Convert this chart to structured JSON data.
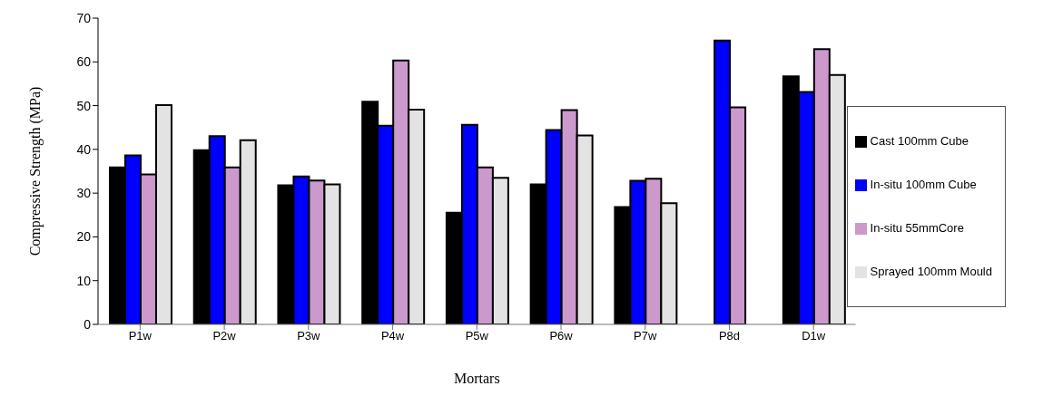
{
  "chart_data": {
    "type": "bar",
    "xlabel": "Mortars",
    "ylabel": "Compressive Strength (MPa)",
    "categories": [
      "P1w",
      "P2w",
      "P3w",
      "P4w",
      "P5w",
      "P6w",
      "P7w",
      "P8d",
      "D1w"
    ],
    "series": [
      {
        "name": "Cast 100mm Cube",
        "color": "#000000",
        "values": [
          35.9,
          39.8,
          31.8,
          50.9,
          25.5,
          32.0,
          26.8,
          null,
          56.7
        ]
      },
      {
        "name": "In-situ 100mm Cube",
        "color": "#0000ff",
        "values": [
          38.6,
          43.0,
          33.8,
          45.4,
          45.6,
          44.4,
          32.8,
          64.9,
          53.1
        ]
      },
      {
        "name": "In-situ 55mmCore",
        "color": "#cc99cc",
        "values": [
          34.3,
          35.9,
          32.9,
          60.3,
          35.9,
          49.0,
          33.3,
          49.6,
          62.9
        ]
      },
      {
        "name": "Sprayed 100mm Mould",
        "color": "#e3e3e3",
        "values": [
          50.1,
          42.1,
          32.0,
          49.1,
          33.5,
          43.2,
          27.7,
          null,
          57.0
        ]
      }
    ],
    "ylim": [
      0,
      70
    ],
    "yticks": [
      0,
      10,
      20,
      30,
      40,
      50,
      60,
      70
    ],
    "grid": false,
    "legend": "right"
  }
}
